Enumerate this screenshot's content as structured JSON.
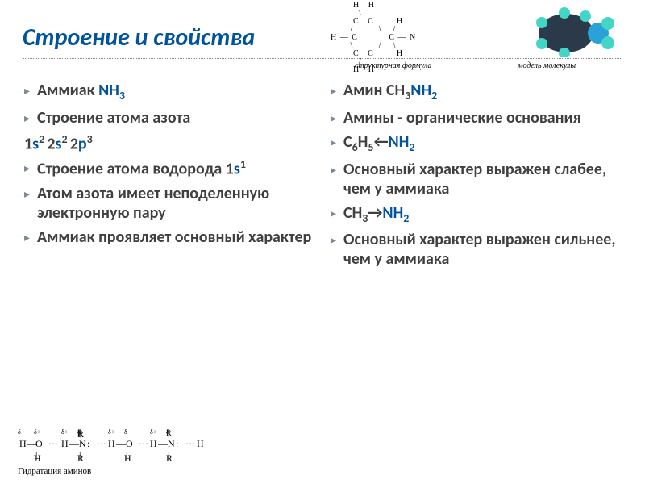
{
  "title": {
    "text": "Строение и свойства",
    "color": "#00549e",
    "fontsize": 30
  },
  "top_structure": {
    "caption_left": "структурная формула",
    "caption_right": "модель молекулы"
  },
  "molecule_model": {
    "ring_color": "#2a3a4a",
    "n_color": "#2aa1d8",
    "h_color": "#43d6c7"
  },
  "left_column": {
    "bullet_color": "#7a8a99",
    "text_color": "#404040",
    "fontsize": 20,
    "items": [
      {
        "html": "Аммиак  <span style='color:#00549e'>NH<sub>3</sub></span>"
      },
      {
        "html": "Строение атома азота"
      },
      {
        "noindent": true,
        "html": "1<span style='color:#00549e'>s</span><sup>2 </sup>2<span style='color:#00549e'>s</span><sup>2 </sup>2<span style='color:#00549e'>p</span><sup>3</sup>"
      },
      {
        "html": "Строение атома водорода 1<span style='color:#00549e'>s</span><sup>1</sup>"
      },
      {
        "html": "Атом азота имеет неподеленную электронную пару"
      },
      {
        "html": "Аммиак проявляет основный характер"
      }
    ]
  },
  "right_column": {
    "bullet_color": "#7a8a99",
    "text_color": "#404040",
    "fontsize": 20,
    "items": [
      {
        "html": "Амин  <span style='color:#404040'>CH<sub>3</sub></span><span style='color:#00549e'>NH<sub>2</sub></span>"
      },
      {
        "html": "Амины - органические основания"
      },
      {
        "html": "C<sub>6</sub>H<sub>5</sub>←<span style='color:#00549e'>NH<sub>2</sub></span>"
      },
      {
        "html": "Основный характер выражен слабее, чем у аммиака"
      },
      {
        "html": " CH<sub>3</sub>→<span style='color:#00549e'>NH<sub>2</sub></span>"
      },
      {
        "html": "Основный характер выражен сильнее, чем у аммиака"
      }
    ]
  },
  "bottom_diagram": {
    "caption": "Гидратация аминов"
  }
}
